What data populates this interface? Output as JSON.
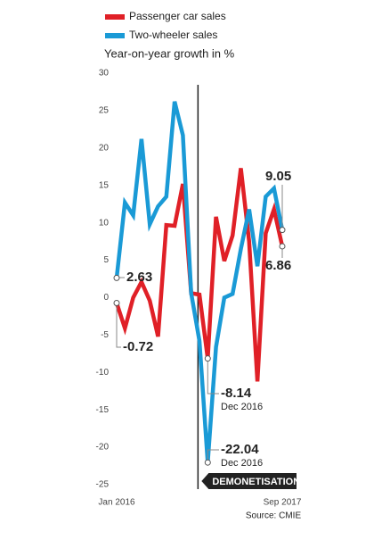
{
  "chart_data": {
    "type": "line",
    "title": "Year-on-year growth in %",
    "source": "Source: CMIE",
    "categories": [
      "Jan 2016",
      null,
      null,
      null,
      null,
      null,
      null,
      null,
      null,
      null,
      null,
      null,
      null,
      null,
      null,
      null,
      null,
      null,
      null,
      null,
      "Sep 2017"
    ],
    "series": [
      {
        "name": "Passenger car sales",
        "color": "#e02027",
        "values": [
          -0.72,
          -4.1,
          0,
          2.1,
          -0.4,
          -5.2,
          9.7,
          9.6,
          15.2,
          0.6,
          0.4,
          -8.14,
          10.8,
          4.9,
          8.3,
          17.3,
          7.5,
          -11.2,
          8.6,
          11.8,
          6.86
        ]
      },
      {
        "name": "Two-wheeler sales",
        "color": "#1a9ad6",
        "values": [
          2.63,
          12.7,
          11,
          21.2,
          9.8,
          12.2,
          13.5,
          26.2,
          21.7,
          0.6,
          -5.8,
          -22.04,
          -6.6,
          0,
          0.5,
          6.5,
          11.8,
          4.2,
          13.5,
          14.6,
          9.05
        ]
      }
    ],
    "annotations": [
      "Dec 2016",
      "Dec 2016"
    ],
    "event": "DEMONETISATION",
    "ylim": [
      -25,
      30
    ],
    "yticks": [
      -25,
      -20,
      -15,
      -10,
      -5,
      0,
      5,
      10,
      15,
      20,
      25,
      30
    ]
  }
}
